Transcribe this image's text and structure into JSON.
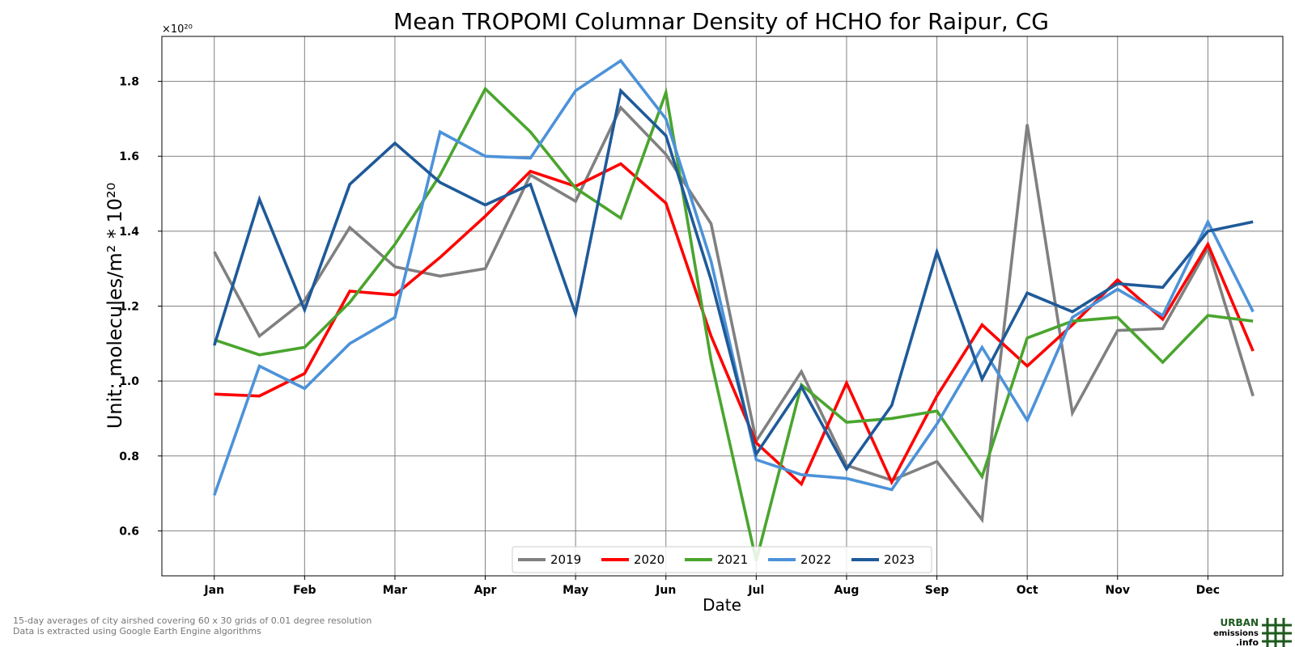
{
  "chart_data": {
    "type": "line",
    "title": "Mean TROPOMI Columnar Density of HCHO for Raipur, CG",
    "xlabel": "Date",
    "ylabel": "Unit: molecules/m² * 10²⁰",
    "y_offset_label": "×10²⁰",
    "x_tick_labels": [
      "Jan",
      "Feb",
      "Mar",
      "Apr",
      "May",
      "Jun",
      "Jul",
      "Aug",
      "Sep",
      "Oct",
      "Nov",
      "Dec"
    ],
    "y_ticks": [
      0.6,
      0.8,
      1.0,
      1.2,
      1.4,
      1.6,
      1.8
    ],
    "y_tick_labels": [
      "0.6",
      "0.8",
      "1.0",
      "1.2",
      "1.4",
      "1.6",
      "1.8"
    ],
    "ylim": [
      0.48,
      1.92
    ],
    "xlim": [
      0.42,
      12.83
    ],
    "grid": true,
    "legend_position": "bottom-center",
    "x": [
      1,
      1.5,
      2,
      2.5,
      3,
      3.5,
      4,
      4.5,
      5,
      5.5,
      6,
      6.5,
      7,
      7.5,
      8,
      8.5,
      9,
      9.5,
      10,
      10.5,
      11,
      11.5,
      12,
      12.5
    ],
    "series": [
      {
        "name": "2019",
        "color": "#808080",
        "values": [
          1.345,
          1.12,
          1.215,
          1.41,
          1.305,
          1.28,
          1.3,
          1.55,
          1.48,
          1.73,
          1.605,
          1.42,
          0.84,
          1.025,
          0.775,
          0.735,
          0.785,
          0.63,
          1.685,
          0.915,
          1.135,
          1.14,
          1.355,
          0.96
        ]
      },
      {
        "name": "2020",
        "color": "#ff0000",
        "values": [
          0.965,
          0.96,
          1.02,
          1.24,
          1.23,
          1.33,
          1.44,
          1.56,
          1.52,
          1.58,
          1.475,
          1.12,
          0.835,
          0.725,
          0.995,
          0.73,
          0.96,
          1.15,
          1.04,
          1.15,
          1.27,
          1.165,
          1.365,
          1.08
        ]
      },
      {
        "name": "2021",
        "color": "#4aa52e",
        "values": [
          1.11,
          1.07,
          1.09,
          1.21,
          1.365,
          1.55,
          1.78,
          1.665,
          1.515,
          1.435,
          1.77,
          1.055,
          0.52,
          0.99,
          0.89,
          0.9,
          0.92,
          0.745,
          1.115,
          1.16,
          1.17,
          1.05,
          1.175,
          1.16
        ]
      },
      {
        "name": "2022",
        "color": "#4c92d9",
        "values": [
          0.695,
          1.04,
          0.98,
          1.1,
          1.17,
          1.665,
          1.6,
          1.595,
          1.775,
          1.855,
          1.7,
          1.32,
          0.79,
          0.75,
          0.74,
          0.71,
          0.885,
          1.09,
          0.895,
          1.17,
          1.245,
          1.175,
          1.425,
          1.185
        ]
      },
      {
        "name": "2023",
        "color": "#1f5a99",
        "values": [
          1.095,
          1.485,
          1.19,
          1.525,
          1.635,
          1.53,
          1.47,
          1.525,
          1.18,
          1.775,
          1.655,
          1.27,
          0.805,
          0.985,
          0.765,
          0.935,
          1.345,
          1.005,
          1.235,
          1.185,
          1.26,
          1.25,
          1.4,
          1.425
        ]
      }
    ]
  },
  "footnote": {
    "line1": "15-day averages of city airshed covering 60 x 30 grids of 0.01 degree resolution",
    "line2": "Data is extracted using Google Earth Engine algorithms"
  },
  "logo": {
    "line1": "URBAN",
    "line2": "emissions",
    "line3": ".info",
    "color": "#1e5a1e"
  }
}
